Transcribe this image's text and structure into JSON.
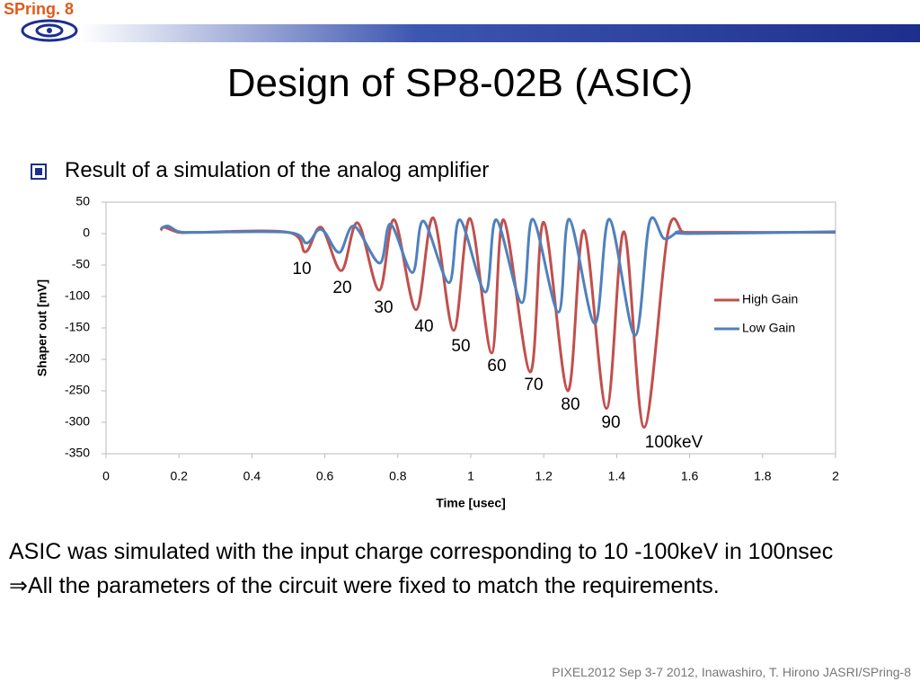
{
  "header": {
    "logo": "SPring. 8",
    "title": "Design of SP8-02B (ASIC)"
  },
  "bullet": "Result of a simulation of the analog amplifier",
  "body": [
    "ASIC was simulated with the input charge corresponding to 10 -100keV in 100nsec",
    "⇒All the parameters of the circuit were fixed to match the requirements."
  ],
  "footer": "PIXEL2012 Sep 3-7 2012, Inawashiro, T. Hirono JASRI/SPring-8",
  "chart_data": {
    "type": "line",
    "xlabel": "Time [usec]",
    "ylabel": "Shaper out [mV]",
    "xlim": [
      0,
      2
    ],
    "xticks": [
      0,
      0.2,
      0.4,
      0.6,
      0.8,
      1,
      1.2,
      1.4,
      1.6,
      1.8,
      2
    ],
    "ylim": [
      -350,
      50
    ],
    "yticks": [
      -350,
      -300,
      -250,
      -200,
      -150,
      -100,
      -50,
      0,
      50
    ],
    "legend": "right",
    "series": [
      {
        "name": "High Gain",
        "color": "#c0504d",
        "x": [
          0.15,
          0.16,
          0.2,
          0.25,
          0.5,
          0.547,
          0.59,
          0.645,
          0.69,
          0.749,
          0.79,
          0.85,
          0.897,
          0.953,
          0.998,
          1.057,
          1.09,
          1.163,
          1.2,
          1.266,
          1.31,
          1.372,
          1.42,
          1.475,
          1.54,
          1.58,
          1.6,
          2.0
        ],
        "values": [
          5,
          10,
          2,
          2,
          2,
          -29,
          10,
          -59,
          17,
          -90,
          22,
          -121,
          25,
          -154,
          24,
          -190,
          22,
          -220,
          18,
          -250,
          5,
          -278,
          3,
          -308,
          0,
          3,
          2,
          2
        ]
      },
      {
        "name": "Low Gain",
        "color": "#4f81bd",
        "x": [
          0.15,
          0.17,
          0.2,
          0.25,
          0.5,
          0.55,
          0.58,
          0.6,
          0.64,
          0.68,
          0.75,
          0.78,
          0.84,
          0.87,
          0.94,
          0.97,
          1.04,
          1.07,
          1.14,
          1.17,
          1.24,
          1.27,
          1.34,
          1.38,
          1.45,
          1.49,
          1.53,
          1.57,
          1.6,
          2.0
        ],
        "values": [
          8,
          12,
          3,
          2,
          2,
          -15,
          5,
          2,
          -30,
          12,
          -47,
          15,
          -62,
          20,
          -78,
          22,
          -93,
          22,
          -110,
          23,
          -125,
          23,
          -143,
          23,
          -162,
          18,
          -8,
          3,
          0,
          3
        ]
      }
    ],
    "annotations": [
      "10",
      "20",
      "30",
      "40",
      "50",
      "60",
      "70",
      "80",
      "90",
      "100keV"
    ]
  }
}
